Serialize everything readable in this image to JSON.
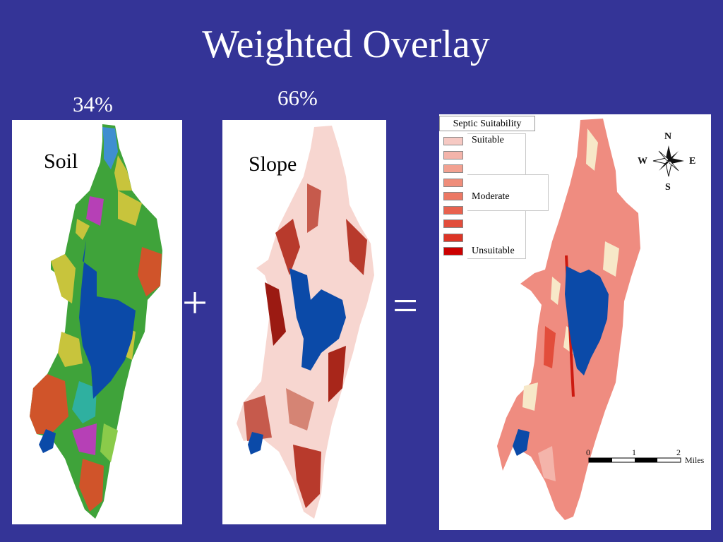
{
  "slide": {
    "title": "Weighted Overlay",
    "soil_weight": "34%",
    "slope_weight": "66%",
    "plus_symbol": "+",
    "equals_symbol": "="
  },
  "soil_map": {
    "label": "Soil"
  },
  "slope_map": {
    "label": "Slope"
  },
  "result_map": {
    "legend": {
      "title": "Septic Suitability",
      "items": [
        "Suitable",
        "Moderate",
        "Unsuitable"
      ],
      "ramp_colors": [
        "#f6c9c3",
        "#f4b4aa",
        "#f2a191",
        "#ef8d7a",
        "#ec7864",
        "#e8624f",
        "#e24d3b",
        "#dc3526",
        "#cc0000"
      ]
    },
    "north_arrow": {
      "n": "N",
      "s": "S",
      "e": "E",
      "w": "W"
    },
    "scale_bar": {
      "ticks": [
        "0",
        "1",
        "2"
      ],
      "unit": "Miles"
    }
  },
  "colors": {
    "background": "#343497",
    "lake": "#0b4aa8",
    "soil_palette": [
      "#3fa33a",
      "#c8c43c",
      "#d0542a",
      "#3f8fd0",
      "#b640b6",
      "#2fb0a0",
      "#8acb4a"
    ],
    "slope_base": "#f7d6d0",
    "slope_dark": "#9b1a12",
    "result_base": "#ef8c80"
  }
}
